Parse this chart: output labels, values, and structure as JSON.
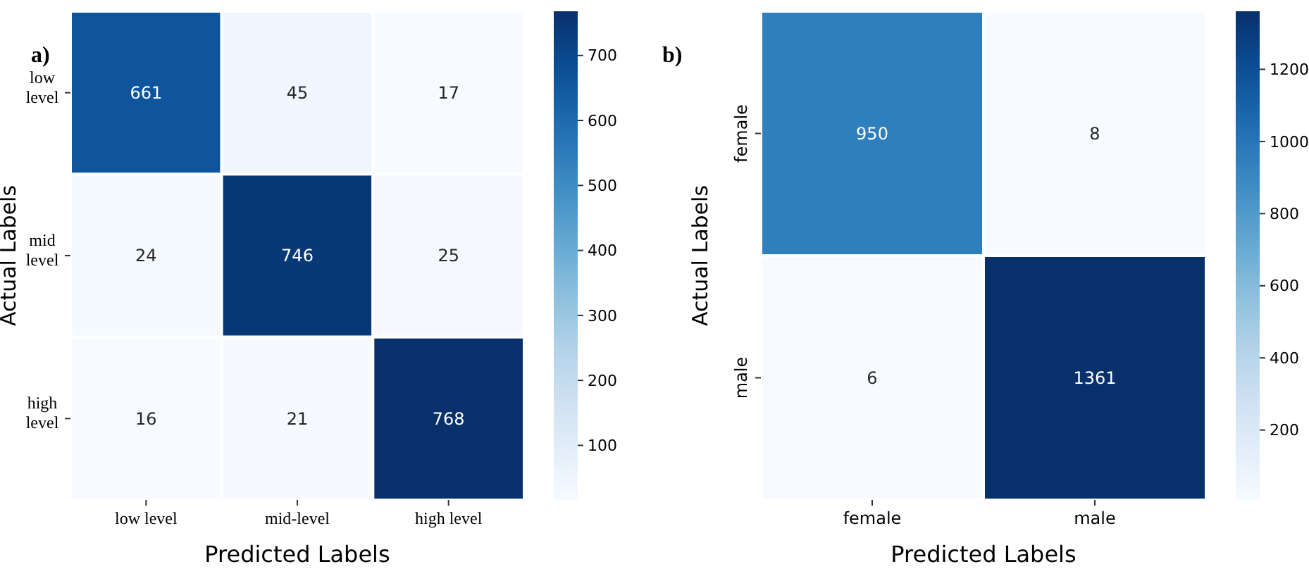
{
  "chart_data": [
    {
      "type": "heatmap",
      "title": "a)",
      "xlabel": "Predicted Labels",
      "ylabel": "Actual Labels",
      "categories": [
        "low level",
        "mid-level",
        "high level"
      ],
      "y_categories": [
        "low level",
        "mid level",
        "high level"
      ],
      "cells": [
        [
          661,
          45,
          17
        ],
        [
          24,
          746,
          25
        ],
        [
          16,
          21,
          768
        ]
      ],
      "data_labels": true,
      "clim": [
        16,
        768
      ],
      "cticks": [
        100,
        200,
        300,
        400,
        500,
        600,
        700
      ]
    },
    {
      "type": "heatmap",
      "title": "b)",
      "xlabel": "Predicted Labels",
      "ylabel": "Actual Labels",
      "categories": [
        "female",
        "male"
      ],
      "y_categories": [
        "female",
        "male"
      ],
      "cells": [
        [
          950,
          8
        ],
        [
          6,
          1361
        ]
      ],
      "data_labels": true,
      "clim": [
        6,
        1361
      ],
      "cticks": [
        200,
        400,
        600,
        800,
        1000,
        1200
      ]
    }
  ]
}
